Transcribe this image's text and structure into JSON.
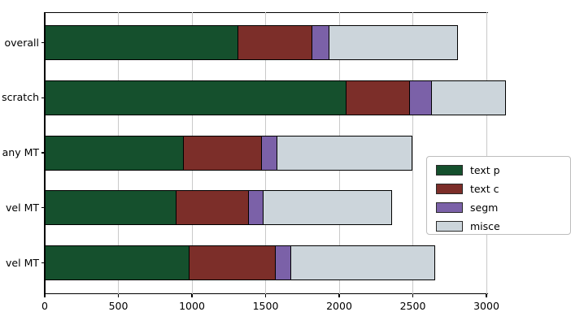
{
  "chart_data": {
    "type": "bar",
    "orientation": "horizontal",
    "stacked": true,
    "title": "",
    "xlabel": "",
    "ylabel": "",
    "categories": [
      "overall",
      "scratch",
      "any MT",
      "vel MT",
      "vel MT"
    ],
    "series": [
      {
        "name": "text p",
        "color": "#15502d",
        "values": [
          1315,
          2055,
          950,
          900,
          985
        ]
      },
      {
        "name": "text c",
        "color": "#7c2e29",
        "values": [
          505,
          430,
          530,
          490,
          585
        ]
      },
      {
        "name": "segm",
        "color": "#7b61a8",
        "values": [
          115,
          150,
          105,
          100,
          105
        ]
      },
      {
        "name": "misce",
        "color": "#ccd5db",
        "values": [
          870,
          500,
          915,
          870,
          975
        ]
      }
    ],
    "xticks": [
      0,
      500,
      1000,
      1500,
      2000,
      2500,
      3000
    ],
    "xlim": [
      0,
      3010
    ],
    "grid": true,
    "legend_position": "center right"
  },
  "colors": {
    "background": "#ffffff",
    "grid": "#c9c9c9",
    "spine": "#000000",
    "bar_edge": "#000000",
    "legend_border": "#bdbdbd"
  }
}
